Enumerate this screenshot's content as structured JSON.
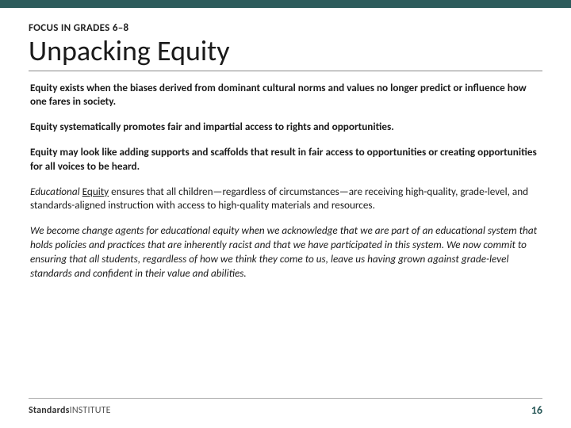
{
  "colors": {
    "top_bar": "#2d5c5c",
    "title_text": "#1a1a1a",
    "body_text": "#1a1a1a",
    "rule": "#888888",
    "footer_rule": "#aaaaaa",
    "pagenum": "#2d5c5c",
    "background": "#ffffff"
  },
  "typography": {
    "kicker_fontsize": 13,
    "title_fontsize": 36,
    "body_fontsize": 13.2,
    "brand_fontsize": 12,
    "pagenum_fontsize": 14
  },
  "kicker": "FOCUS IN GRADES 6–8",
  "title": "Unpacking Equity",
  "paragraphs": {
    "p1": "Equity exists when the biases derived from dominant cultural norms and values no longer predict or influence how one fares in society.",
    "p2": "Equity systematically promotes fair and impartial access to rights and opportunities.",
    "p3": "Equity may look like adding supports and scaffolds that result in fair access to opportunities or creating opportunities for all voices to be heard.",
    "p4_prefix_italic": "Educational",
    "p4_underlined": "Equity",
    "p4_rest": " ensures that all children—regardless of circumstances—are receiving high-quality, grade-level, and standards-aligned instruction with access to high-quality materials and resources.",
    "p5": "We become change agents for educational equity when we acknowledge that we are part of an educational system that holds policies and practices that are inherently racist and that we have participated in this system. We now commit to ensuring that all students, regardless of how we think they come to us, leave us having grown against grade-level standards and confident in their value and abilities."
  },
  "footer": {
    "brand_bold": "Standards",
    "brand_light": "INSTITUTE",
    "page_number": "16"
  }
}
